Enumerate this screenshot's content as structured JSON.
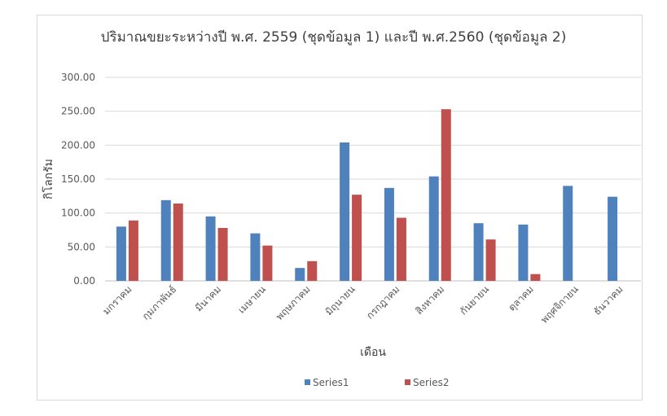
{
  "chart_data": {
    "type": "bar",
    "title": "ปริมาณขยะระหว่างปี พ.ศ. 2559 (ชุดข้อมูล 1) และปี พ.ศ.2560 (ชุดข้อมูล 2)",
    "xlabel": "เดือน",
    "ylabel": "กิโลกรัม",
    "ylim": [
      0,
      300
    ],
    "yticks": [
      "0.00",
      "50.00",
      "100.00",
      "150.00",
      "200.00",
      "250.00",
      "300.00"
    ],
    "categories": [
      "มกราคม",
      "กุมภาพันธ์",
      "มีนาคม",
      "เมษายน",
      "พฤษภาคม",
      "มิถุนายน",
      "กรกฎาคม",
      "สิงหาคม",
      "กันยายน",
      "ตุลาคม",
      "พฤศจิกายน",
      "ธันวาคม"
    ],
    "series": [
      {
        "name": "Series1",
        "color": "#4f81bd",
        "values": [
          80,
          119,
          95,
          70,
          19,
          204,
          137,
          154,
          85,
          83,
          140,
          124
        ]
      },
      {
        "name": "Series2",
        "color": "#c0504d",
        "values": [
          89,
          114,
          78,
          52,
          29,
          127,
          93,
          253,
          61,
          10,
          null,
          null
        ]
      }
    ],
    "grid": true,
    "legend": "bottom"
  }
}
